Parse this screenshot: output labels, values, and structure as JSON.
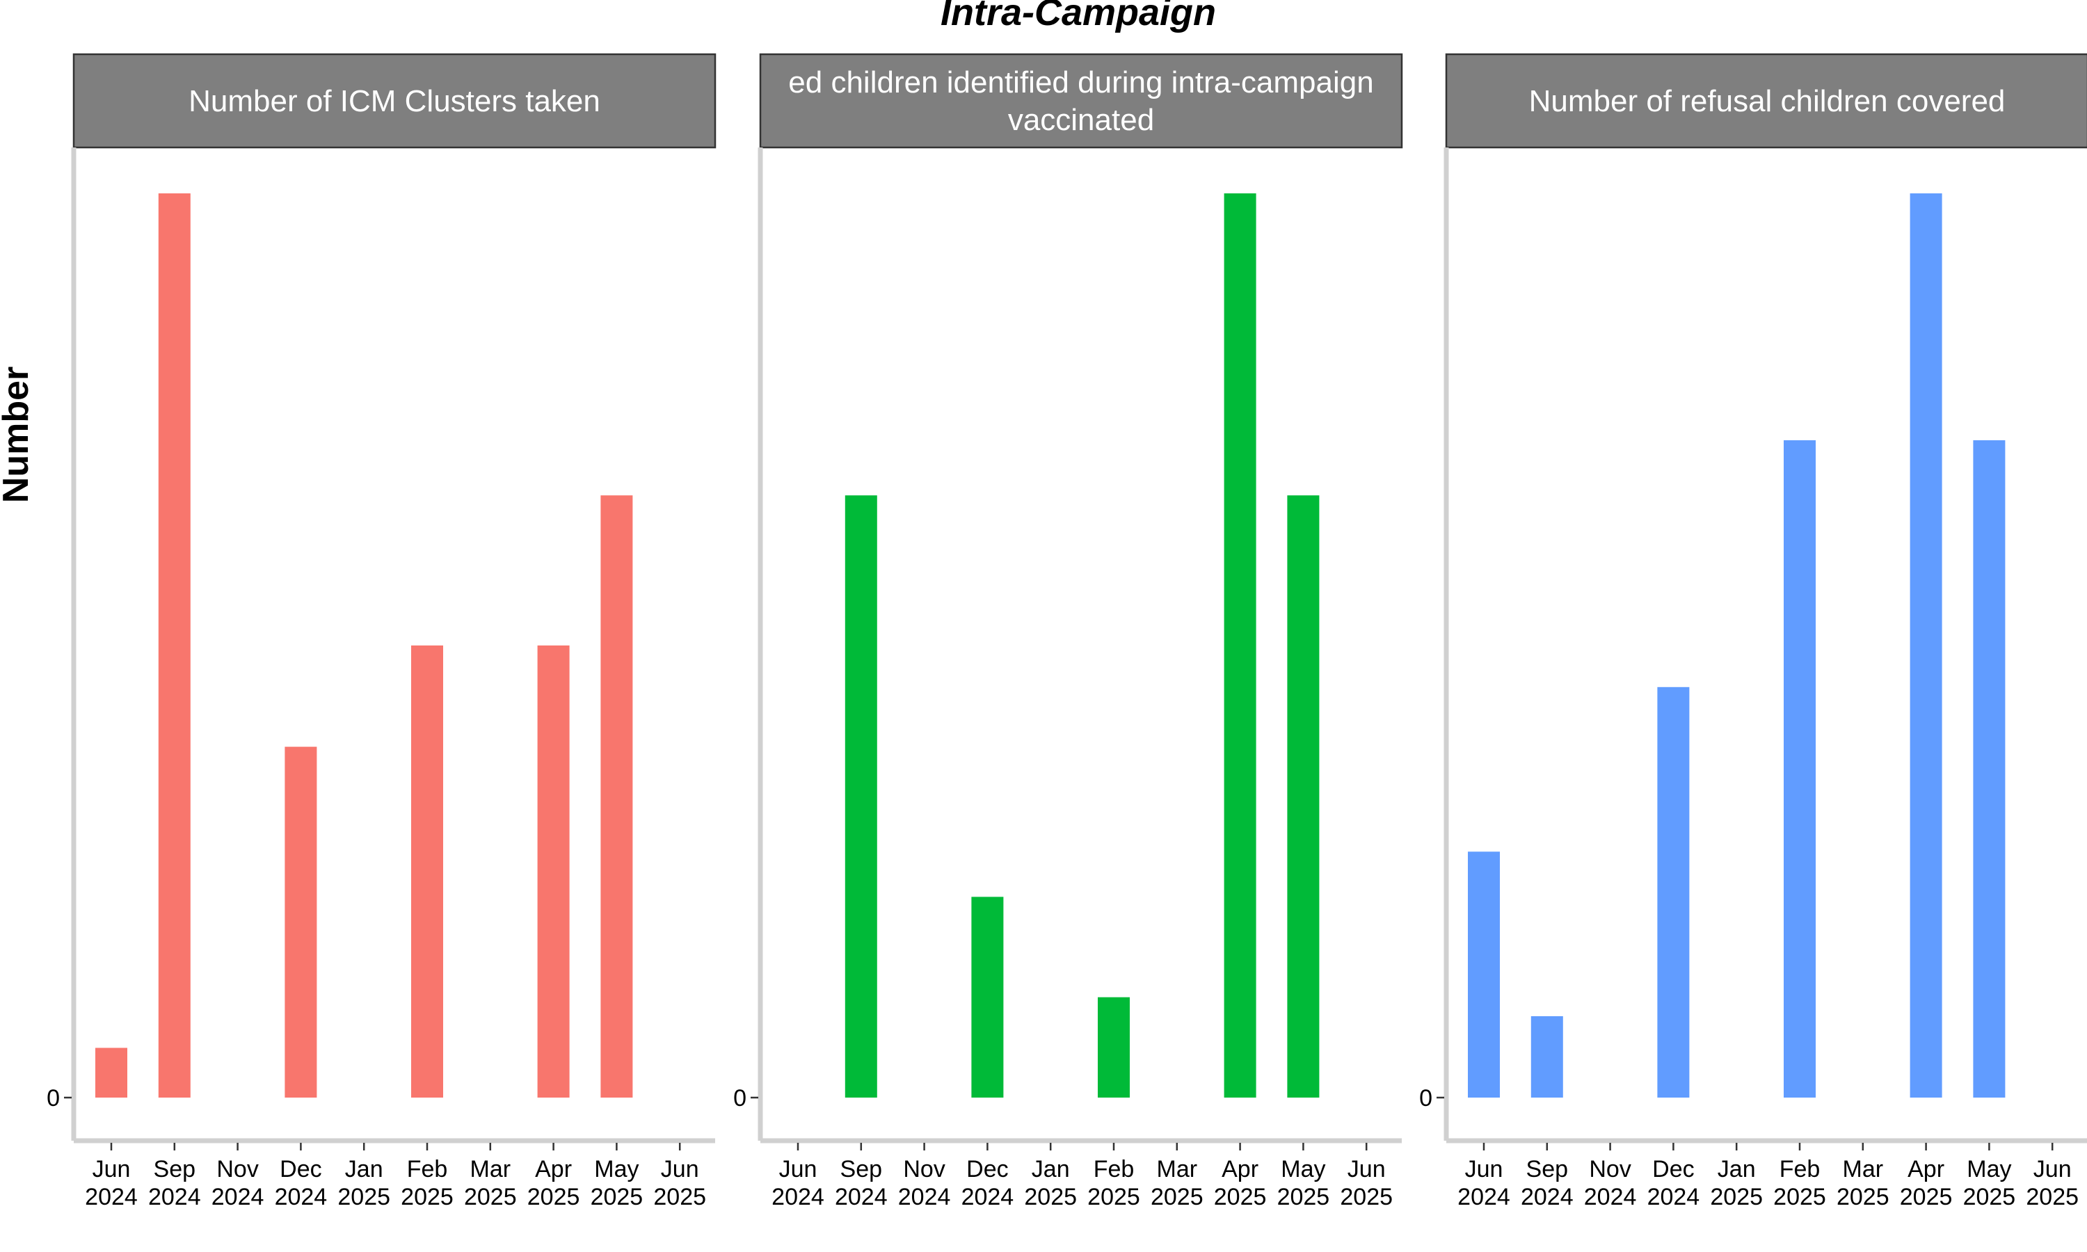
{
  "chart_data": {
    "title": "Intra-Campaign",
    "ylabel": "Number",
    "panels": [
      {
        "type": "bar",
        "title_lines": [
          "Number of ICM Clusters taken"
        ],
        "color": "#F8766D",
        "x": [
          "2024-06",
          "2024-09",
          "2024-12",
          "2025-02",
          "2025-04",
          "2025-05"
        ],
        "values": [
          0.055,
          1.0,
          0.388,
          0.5,
          0.5,
          0.666
        ]
      },
      {
        "type": "bar",
        "title_lines": [
          "ed children identified during intra-campaign",
          "vaccinated"
        ],
        "color": "#00BA38",
        "x": [
          "2024-09",
          "2024-12",
          "2025-02",
          "2025-04",
          "2025-05"
        ],
        "values": [
          0.666,
          0.222,
          0.111,
          1.0,
          0.666
        ]
      },
      {
        "type": "bar",
        "title_lines": [
          "Number of refusal children covered"
        ],
        "color": "#619CFF",
        "x": [
          "2024-06",
          "2024-09",
          "2024-12",
          "2025-02",
          "2025-04",
          "2025-05"
        ],
        "values": [
          0.272,
          0.09,
          0.454,
          0.727,
          1.0,
          0.727
        ]
      }
    ],
    "y_ticks": [
      "0"
    ],
    "x_ticks": [
      {
        "month": "Jun",
        "year": "2024",
        "date": "2024-06"
      },
      {
        "month": "Sep",
        "year": "2024",
        "date": "2024-09"
      },
      {
        "month": "Nov",
        "year": "2024",
        "date": "2024-11"
      },
      {
        "month": "Dec",
        "year": "2024",
        "date": "2024-12"
      },
      {
        "month": "Jan",
        "year": "2025",
        "date": "2025-01"
      },
      {
        "month": "Feb",
        "year": "2025",
        "date": "2025-02"
      },
      {
        "month": "Mar",
        "year": "2025",
        "date": "2025-03"
      },
      {
        "month": "Apr",
        "year": "2025",
        "date": "2025-04"
      },
      {
        "month": "May",
        "year": "2025",
        "date": "2025-05"
      },
      {
        "month": "Jun",
        "year": "2025",
        "date": "2025-06"
      }
    ],
    "grid": false,
    "legend": "none"
  }
}
